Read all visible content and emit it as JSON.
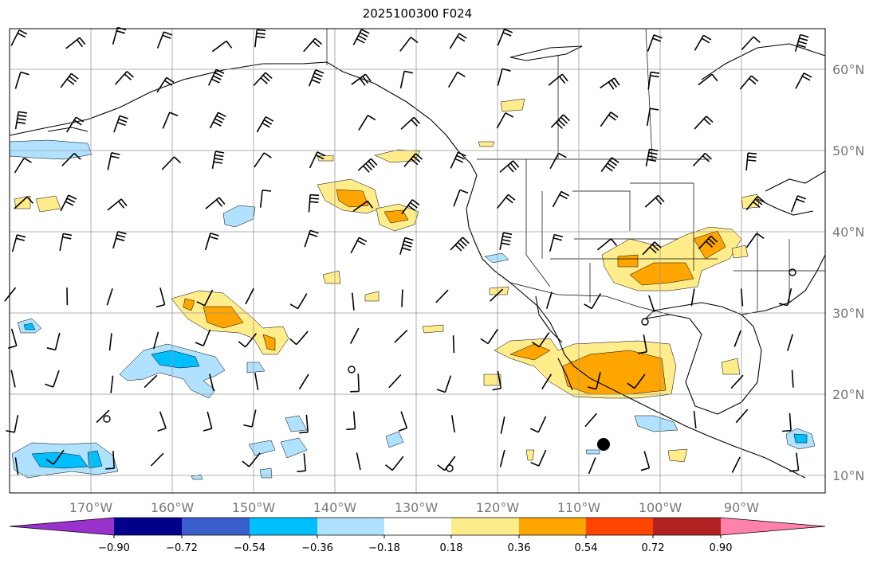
{
  "title": "2025100300 F024",
  "lon_labels": [
    "170°W",
    "160°W",
    "150°W",
    "140°W",
    "130°W",
    "120°W",
    "110°W",
    "100°W",
    "90°W"
  ],
  "lat_labels": [
    "60°N",
    "50°N",
    "40°N",
    "30°N",
    "20°N",
    "10°N"
  ],
  "colorbar": {
    "ticks": [
      "−0.90",
      "−0.72",
      "−0.54",
      "−0.36",
      "−0.18",
      "0.18",
      "0.36",
      "0.54",
      "0.72",
      "0.90"
    ],
    "colors": [
      "#9932cc",
      "#00008b",
      "#3a5fcd",
      "#00bfff",
      "#b0e2ff",
      "#ffffff",
      "#ffec8b",
      "#ffa500",
      "#ff4500",
      "#b22222",
      "#ff82ab"
    ]
  },
  "colors": {
    "light_yellow": "#ffec8b",
    "orange": "#ffa500",
    "light_blue": "#b0e2ff",
    "deep_sky_blue": "#00bfff"
  }
}
